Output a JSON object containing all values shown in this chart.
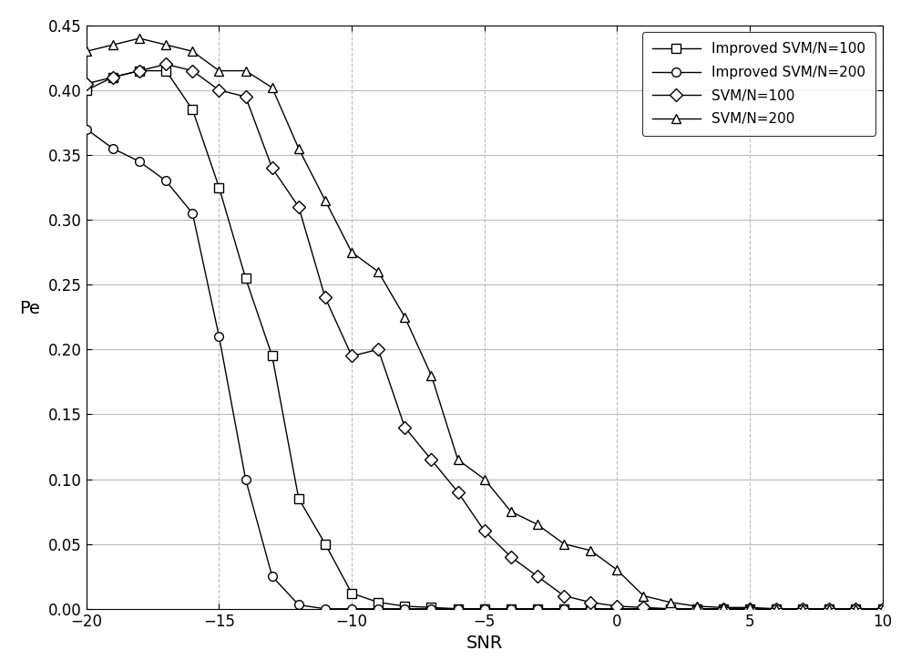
{
  "title": "",
  "xlabel": "SNR",
  "ylabel": "Pe",
  "xlim": [
    -20,
    10
  ],
  "ylim": [
    0,
    0.45
  ],
  "yticks": [
    0,
    0.05,
    0.1,
    0.15,
    0.2,
    0.25,
    0.3,
    0.35,
    0.4,
    0.45
  ],
  "xticks": [
    -20,
    -15,
    -10,
    -5,
    0,
    5,
    10
  ],
  "background_color": "#ffffff",
  "improved_svm_n100_x": [
    -20,
    -19,
    -18,
    -17,
    -16,
    -15,
    -14,
    -13,
    -12,
    -11,
    -10,
    -9,
    -8,
    -7,
    -6,
    -5,
    -4,
    -3,
    -2,
    -1,
    0,
    1,
    2,
    3,
    4,
    5,
    6,
    7,
    8,
    9,
    10
  ],
  "improved_svm_n100_y": [
    0.4,
    0.41,
    0.415,
    0.415,
    0.385,
    0.325,
    0.255,
    0.195,
    0.085,
    0.05,
    0.012,
    0.005,
    0.002,
    0.001,
    0.0,
    0.0,
    0.0,
    0.0,
    0.0,
    0.0,
    0.0,
    0.0,
    0.0,
    0.0,
    0.0,
    0.0,
    0.0,
    0.0,
    0.0,
    0.0,
    0.0
  ],
  "improved_svm_n200_x": [
    -20,
    -19,
    -18,
    -17,
    -16,
    -15,
    -14,
    -13,
    -12,
    -11,
    -10,
    -9,
    -8,
    -7,
    -6,
    -5,
    -4,
    -3,
    -2,
    -1,
    0,
    1,
    2,
    3,
    4,
    5,
    6,
    7,
    8,
    9,
    10
  ],
  "improved_svm_n200_y": [
    0.37,
    0.355,
    0.345,
    0.33,
    0.305,
    0.21,
    0.1,
    0.025,
    0.003,
    0.0,
    0.0,
    0.0,
    0.0,
    0.0,
    0.0,
    0.0,
    0.0,
    0.0,
    0.0,
    0.0,
    0.0,
    0.0,
    0.0,
    0.0,
    0.0,
    0.0,
    0.0,
    0.0,
    0.0,
    0.0,
    0.0
  ],
  "svm_n100_x": [
    -20,
    -19,
    -18,
    -17,
    -16,
    -15,
    -14,
    -13,
    -12,
    -11,
    -10,
    -9,
    -8,
    -7,
    -6,
    -5,
    -4,
    -3,
    -2,
    -1,
    0,
    1,
    2,
    3,
    4,
    5,
    6,
    7,
    8,
    9,
    10
  ],
  "svm_n100_y": [
    0.405,
    0.41,
    0.415,
    0.42,
    0.415,
    0.4,
    0.395,
    0.34,
    0.31,
    0.24,
    0.195,
    0.2,
    0.14,
    0.115,
    0.09,
    0.06,
    0.04,
    0.025,
    0.01,
    0.005,
    0.002,
    0.001,
    0.0,
    0.0,
    0.0,
    0.0,
    0.0,
    0.0,
    0.0,
    0.0,
    0.0
  ],
  "svm_n200_x": [
    -20,
    -19,
    -18,
    -17,
    -16,
    -15,
    -14,
    -13,
    -12,
    -11,
    -10,
    -9,
    -8,
    -7,
    -6,
    -5,
    -4,
    -3,
    -2,
    -1,
    0,
    1,
    2,
    3,
    4,
    5,
    6,
    7,
    8,
    9,
    10
  ],
  "svm_n200_y": [
    0.43,
    0.435,
    0.44,
    0.435,
    0.43,
    0.415,
    0.415,
    0.402,
    0.355,
    0.315,
    0.275,
    0.26,
    0.225,
    0.18,
    0.115,
    0.1,
    0.075,
    0.065,
    0.05,
    0.045,
    0.03,
    0.01,
    0.005,
    0.002,
    0.001,
    0.001,
    0.0,
    0.0,
    0.0,
    0.0,
    0.0
  ],
  "line_color": "#000000",
  "marker_size": 7,
  "line_width": 1.0,
  "legend_labels": [
    "Improved SVM/N=100",
    "Improved SVM/N=200",
    "SVM/N=100",
    "SVM/N=200"
  ],
  "legend_markers": [
    "s",
    "o",
    "D",
    "^"
  ]
}
